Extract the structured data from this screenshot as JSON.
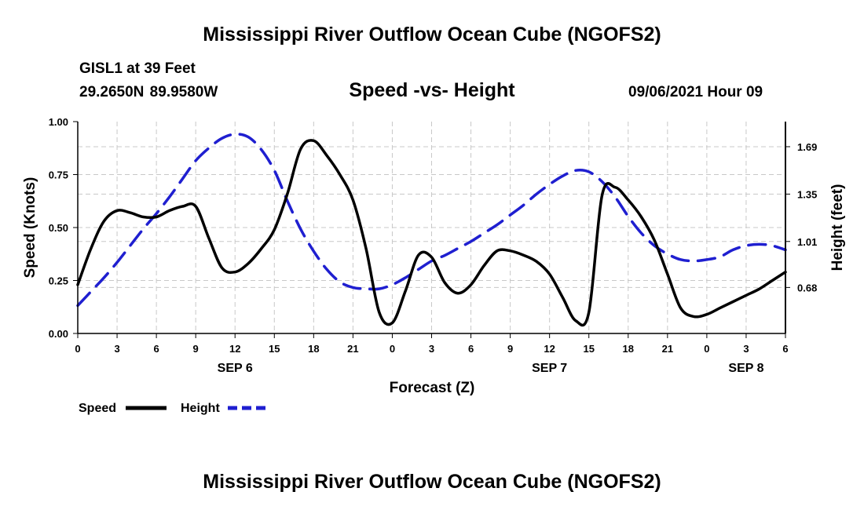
{
  "page": {
    "title": "Mississippi River Outflow Ocean Cube (NGOFS2)",
    "footer_title": "Mississippi River Outflow Ocean Cube (NGOFS2)",
    "station_name": "GISL1 at 39 Feet",
    "station_coords": "29.2650N  89.9580W",
    "run_date": "09/06/2021 Hour 09"
  },
  "chart_data": {
    "type": "line",
    "title": "Speed -vs- Height",
    "xlabel": "Forecast (Z)",
    "ylabel": "Speed (Knots)",
    "y2label": "Height (feet)",
    "xlim": [
      0,
      54
    ],
    "ylim": [
      0,
      1.0
    ],
    "y2lim": [
      0.35,
      1.87
    ],
    "x_ticks": [
      0,
      3,
      6,
      9,
      12,
      15,
      18,
      21,
      24,
      27,
      30,
      33,
      36,
      39,
      42,
      45,
      48,
      51,
      54
    ],
    "x_tick_labels": [
      "0",
      "3",
      "6",
      "9",
      "12",
      "15",
      "18",
      "21",
      "0",
      "3",
      "6",
      "9",
      "12",
      "15",
      "18",
      "21",
      "0",
      "3",
      "6"
    ],
    "day_labels": [
      {
        "x": 12,
        "label": "SEP 6"
      },
      {
        "x": 36,
        "label": "SEP 7"
      },
      {
        "x": 51,
        "label": "SEP 8"
      }
    ],
    "y_ticks": [
      0.0,
      0.25,
      0.5,
      0.75,
      1.0
    ],
    "y_tick_labels": [
      "0.00",
      "0.25",
      "0.50",
      "0.75",
      "1.00"
    ],
    "y2_ticks": [
      0.68,
      1.01,
      1.35,
      1.69
    ],
    "y2_tick_labels": [
      "0.68",
      "1.01",
      "1.35",
      "1.69"
    ],
    "grid": true,
    "legend_position": "bottom-left",
    "series": [
      {
        "name": "Speed",
        "axis": "left",
        "color": "#000000",
        "style": "solid",
        "x": [
          0,
          1,
          2,
          3,
          4,
          5,
          6,
          7,
          8,
          9,
          10,
          11,
          12,
          13,
          14,
          15,
          16,
          17,
          18,
          19,
          20,
          21,
          22,
          23,
          24,
          25,
          26,
          27,
          28,
          29,
          30,
          31,
          32,
          33,
          34,
          35,
          36,
          37,
          38,
          39,
          40,
          41,
          42,
          43,
          44,
          45,
          46,
          47,
          48,
          49,
          50,
          51,
          52,
          53,
          54
        ],
        "values": [
          0.23,
          0.4,
          0.53,
          0.58,
          0.57,
          0.55,
          0.55,
          0.58,
          0.6,
          0.6,
          0.45,
          0.31,
          0.29,
          0.33,
          0.4,
          0.49,
          0.66,
          0.87,
          0.91,
          0.84,
          0.75,
          0.63,
          0.4,
          0.1,
          0.05,
          0.2,
          0.37,
          0.36,
          0.24,
          0.19,
          0.23,
          0.32,
          0.39,
          0.39,
          0.37,
          0.34,
          0.28,
          0.17,
          0.06,
          0.1,
          0.65,
          0.69,
          0.63,
          0.55,
          0.44,
          0.28,
          0.12,
          0.08,
          0.09,
          0.12,
          0.15,
          0.18,
          0.21,
          0.25,
          0.29
        ]
      },
      {
        "name": "Height",
        "axis": "right",
        "color": "#1f1fd0",
        "style": "dashed",
        "x": [
          0,
          1,
          2,
          3,
          4,
          5,
          6,
          7,
          8,
          9,
          10,
          11,
          12,
          13,
          14,
          15,
          16,
          17,
          18,
          19,
          20,
          21,
          22,
          23,
          24,
          25,
          26,
          27,
          28,
          29,
          30,
          31,
          32,
          33,
          34,
          35,
          36,
          37,
          38,
          39,
          40,
          41,
          42,
          43,
          44,
          45,
          46,
          47,
          48,
          49,
          50,
          51,
          52,
          53,
          54
        ],
        "values": [
          0.55,
          0.65,
          0.75,
          0.86,
          0.98,
          1.1,
          1.21,
          1.33,
          1.46,
          1.59,
          1.68,
          1.75,
          1.78,
          1.76,
          1.67,
          1.52,
          1.3,
          1.1,
          0.94,
          0.81,
          0.72,
          0.68,
          0.67,
          0.67,
          0.7,
          0.75,
          0.81,
          0.87,
          0.91,
          0.96,
          1.01,
          1.07,
          1.13,
          1.2,
          1.27,
          1.35,
          1.42,
          1.48,
          1.52,
          1.51,
          1.44,
          1.33,
          1.19,
          1.07,
          0.98,
          0.92,
          0.88,
          0.87,
          0.88,
          0.9,
          0.95,
          0.98,
          0.99,
          0.98,
          0.95
        ]
      }
    ]
  }
}
